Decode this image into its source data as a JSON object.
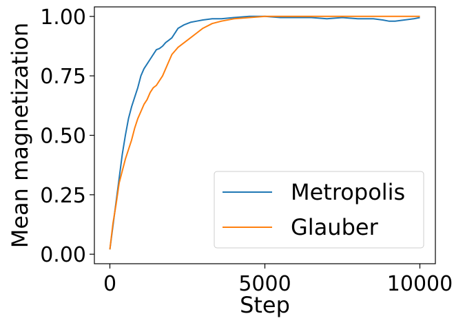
{
  "chart_data": {
    "type": "line",
    "title": "",
    "xlabel": "Step",
    "ylabel": "Mean magnetization",
    "xlim": [
      -500,
      10500
    ],
    "ylim": [
      -0.04,
      1.04
    ],
    "xticks": [
      0,
      5000,
      10000
    ],
    "xtick_labels": [
      "0",
      "5000",
      "10000"
    ],
    "yticks": [
      0.0,
      0.25,
      0.5,
      0.75,
      1.0
    ],
    "ytick_labels": [
      "0.00",
      "0.25",
      "0.50",
      "0.75",
      "1.00"
    ],
    "grid": false,
    "legend_position": "lower-right",
    "series": [
      {
        "name": "Metropolis",
        "color": "#1f77b4",
        "x": [
          0,
          100,
          200,
          300,
          400,
          500,
          600,
          700,
          800,
          900,
          1000,
          1100,
          1200,
          1300,
          1400,
          1500,
          1600,
          1700,
          1800,
          1900,
          2000,
          2200,
          2400,
          2600,
          2800,
          3000,
          3300,
          3600,
          4000,
          4500,
          5000,
          5500,
          6000,
          6500,
          7000,
          7500,
          8000,
          8500,
          8800,
          9000,
          9200,
          9500,
          9800,
          10000
        ],
        "y": [
          0.02,
          0.12,
          0.22,
          0.32,
          0.42,
          0.5,
          0.57,
          0.62,
          0.66,
          0.7,
          0.75,
          0.78,
          0.8,
          0.82,
          0.84,
          0.86,
          0.865,
          0.875,
          0.89,
          0.9,
          0.91,
          0.95,
          0.965,
          0.975,
          0.98,
          0.985,
          0.99,
          0.99,
          0.995,
          1.0,
          1.0,
          0.995,
          0.995,
          0.995,
          0.99,
          0.995,
          0.99,
          0.99,
          0.985,
          0.98,
          0.98,
          0.985,
          0.99,
          0.995
        ]
      },
      {
        "name": "Glauber",
        "color": "#ff7f0e",
        "x": [
          0,
          100,
          200,
          300,
          400,
          500,
          600,
          700,
          800,
          900,
          1000,
          1100,
          1200,
          1300,
          1400,
          1500,
          1600,
          1700,
          1800,
          1900,
          2000,
          2200,
          2400,
          2600,
          2800,
          3000,
          3300,
          3600,
          4000,
          4500,
          5000,
          5500,
          6000,
          7000,
          8000,
          9000,
          10000
        ],
        "y": [
          0.02,
          0.13,
          0.21,
          0.3,
          0.35,
          0.4,
          0.44,
          0.48,
          0.53,
          0.57,
          0.6,
          0.63,
          0.65,
          0.68,
          0.7,
          0.71,
          0.73,
          0.75,
          0.78,
          0.81,
          0.84,
          0.87,
          0.89,
          0.91,
          0.93,
          0.95,
          0.97,
          0.98,
          0.99,
          0.995,
          1.0,
          1.0,
          1.0,
          1.0,
          1.0,
          1.0,
          1.0
        ]
      }
    ]
  }
}
